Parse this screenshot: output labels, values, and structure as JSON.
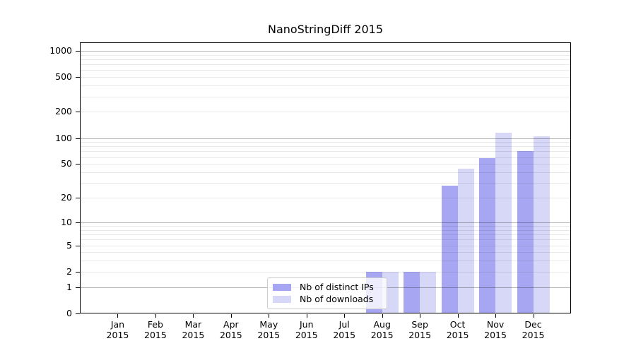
{
  "title": {
    "text": "NanoStringDiff 2015"
  },
  "chart_data": {
    "type": "bar",
    "title": "NanoStringDiff 2015",
    "year_label": "2015",
    "categories": [
      "Jan",
      "Feb",
      "Mar",
      "Apr",
      "May",
      "Jun",
      "Jul",
      "Aug",
      "Sep",
      "Oct",
      "Nov",
      "Dec"
    ],
    "series": [
      {
        "name": "Nb of distinct IPs",
        "color": "#a6a6f2",
        "values": [
          0,
          0,
          0,
          0,
          0,
          0,
          0,
          2,
          2,
          28,
          59,
          70
        ]
      },
      {
        "name": "Nb of downloads",
        "color": "#d7d7f8",
        "values": [
          0,
          0,
          0,
          0,
          0,
          0,
          0,
          2,
          2,
          44,
          116,
          104
        ]
      }
    ],
    "y_axis": {
      "scale": "log10(1+x)",
      "ticks": [
        0,
        1,
        2,
        5,
        10,
        20,
        50,
        100,
        200,
        500,
        1000
      ],
      "major_gridlines": [
        1,
        10,
        100,
        1000
      ],
      "minor_gridlines": [
        2,
        3,
        4,
        5,
        6,
        7,
        8,
        9,
        20,
        30,
        40,
        50,
        60,
        70,
        80,
        90,
        200,
        300,
        400,
        500,
        600,
        700,
        800,
        900
      ],
      "ylim": [
        0,
        1250
      ]
    },
    "legend": {
      "position": "bottom-center"
    },
    "grid": true
  },
  "colors": {
    "major_grid": "#b4b4b4",
    "minor_grid": "#e9e9e9",
    "axis": "#000000"
  }
}
